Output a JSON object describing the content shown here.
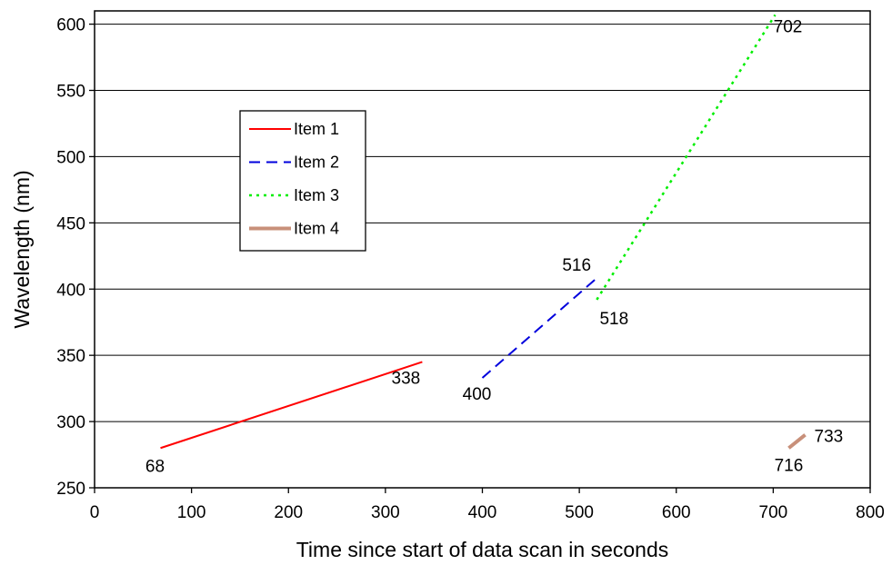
{
  "chart_data": {
    "type": "line",
    "title": "",
    "xlabel": "Time since start of data scan in seconds",
    "ylabel": "Wavelength (nm)",
    "xlim": [
      0,
      800
    ],
    "ylim": [
      250,
      610
    ],
    "xticks": [
      0,
      100,
      200,
      300,
      400,
      500,
      600,
      700,
      800
    ],
    "yticks": [
      250,
      300,
      350,
      400,
      450,
      500,
      550,
      600
    ],
    "grid": "horizontal",
    "legend_position": "upper-left inside plot",
    "series": [
      {
        "name": "Item 1",
        "color": "#ff0000",
        "style": "solid",
        "points": [
          {
            "x": 68,
            "y": 280,
            "label": "68"
          },
          {
            "x": 338,
            "y": 345,
            "label": "338"
          }
        ]
      },
      {
        "name": "Item 2",
        "color": "#0000dd",
        "style": "dashed",
        "points": [
          {
            "x": 400,
            "y": 333,
            "label": "400"
          },
          {
            "x": 516,
            "y": 407,
            "label": "516"
          }
        ]
      },
      {
        "name": "Item 3",
        "color": "#00ee00",
        "style": "dotted",
        "points": [
          {
            "x": 518,
            "y": 392,
            "label": "518"
          },
          {
            "x": 702,
            "y": 607,
            "label": "702"
          }
        ]
      },
      {
        "name": "Item 4",
        "color": "#c8907a",
        "style": "thick",
        "points": [
          {
            "x": 716,
            "y": 280,
            "label": "716"
          },
          {
            "x": 733,
            "y": 290,
            "label": "733"
          }
        ]
      }
    ]
  }
}
